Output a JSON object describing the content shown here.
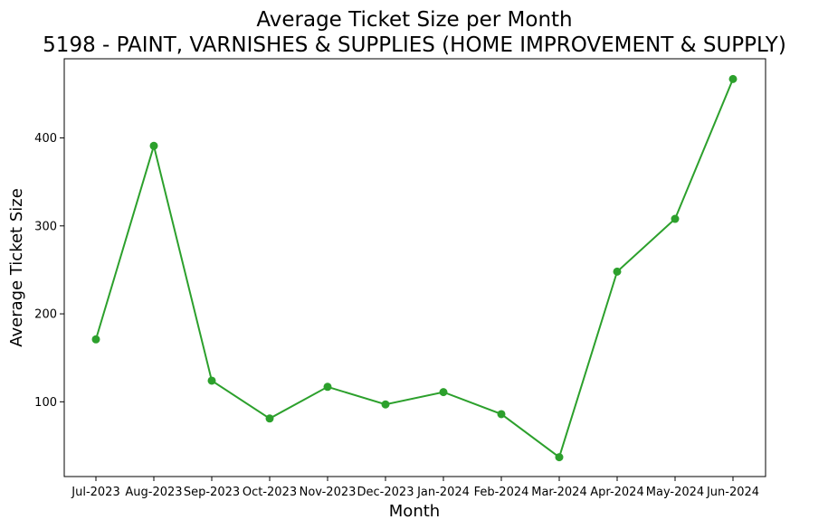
{
  "chart_data": {
    "type": "line",
    "title": "Average Ticket Size per Month",
    "subtitle": "5198 - PAINT, VARNISHES & SUPPLIES (HOME IMPROVEMENT & SUPPLY)",
    "xlabel": "Month",
    "ylabel": "Average Ticket Size",
    "categories": [
      "Jul-2023",
      "Aug-2023",
      "Sep-2023",
      "Oct-2023",
      "Nov-2023",
      "Dec-2023",
      "Jan-2024",
      "Feb-2024",
      "Mar-2024",
      "Apr-2024",
      "May-2024",
      "Jun-2024"
    ],
    "values": [
      171,
      391,
      124,
      81,
      117,
      97,
      111,
      86,
      37,
      248,
      308,
      467
    ],
    "ylim": [
      15,
      490
    ],
    "yticks": [
      100,
      200,
      300,
      400
    ],
    "grid": false,
    "color": "#2ca02c"
  }
}
